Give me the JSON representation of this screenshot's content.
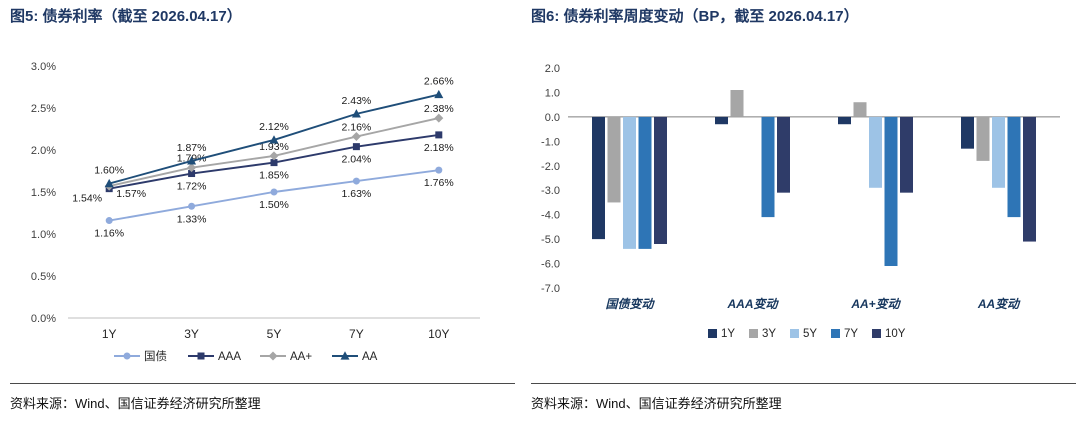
{
  "figure5": {
    "title": "图5: 债券利率（截至 2026.04.17）",
    "source": "资料来源：Wind、国信证券经济研究所整理"
  },
  "figure6": {
    "title": "图6: 债券利率周度变动（BP，截至 2026.04.17）",
    "source": "资料来源：Wind、国信证券经济研究所整理"
  },
  "chart_data": [
    {
      "type": "line",
      "title": "图5: 债券利率（截至 2026.04.17）",
      "x": [
        "1Y",
        "3Y",
        "5Y",
        "7Y",
        "10Y"
      ],
      "series": [
        {
          "name": "国债",
          "values": [
            1.16,
            1.33,
            1.5,
            1.63,
            1.76
          ],
          "color": "#8FAADC",
          "marker": "circle",
          "label_pos": "below"
        },
        {
          "name": "AAA",
          "values": [
            1.54,
            1.72,
            1.85,
            2.04,
            2.18
          ],
          "color": "#2D3A6B",
          "marker": "square",
          "label_pos": "below"
        },
        {
          "name": "AA+",
          "values": [
            1.57,
            1.79,
            1.93,
            2.16,
            2.38
          ],
          "color": "#A6A6A6",
          "marker": "diamond",
          "label_pos": "above"
        },
        {
          "name": "AA",
          "values": [
            1.6,
            1.87,
            2.12,
            2.43,
            2.66
          ],
          "color": "#1F4E79",
          "marker": "triangle",
          "label_pos": "above"
        }
      ],
      "ylim": [
        0,
        3
      ],
      "yticks": [
        0,
        0.5,
        1,
        1.5,
        2,
        2.5,
        3
      ],
      "ytick_labels": [
        "0.0%",
        "0.5%",
        "1.0%",
        "1.5%",
        "2.0%",
        "2.5%",
        "3.0%"
      ],
      "grid": false,
      "legend_position": "bottom",
      "label_overrides": {
        "AAA": {
          "0": [
            -22,
            13
          ]
        },
        "AA+": {
          "0": [
            22,
            11
          ]
        }
      }
    },
    {
      "type": "bar",
      "title": "图6: 债券利率周度变动（BP，截至 2026.04.17）",
      "categories": [
        "国债变动",
        "AAA变动",
        "AA+变动",
        "AA变动"
      ],
      "series": [
        {
          "name": "1Y",
          "color": "#1F3864",
          "values": [
            -5.0,
            -0.3,
            -0.3,
            -1.3
          ]
        },
        {
          "name": "3Y",
          "color": "#A6A6A6",
          "values": [
            -3.5,
            1.1,
            0.6,
            -1.8
          ]
        },
        {
          "name": "5Y",
          "color": "#9DC3E6",
          "values": [
            -5.4,
            0.0,
            -2.9,
            -2.9
          ]
        },
        {
          "name": "7Y",
          "color": "#2E75B6",
          "values": [
            -5.4,
            -4.1,
            -6.1,
            -4.1
          ]
        },
        {
          "name": "10Y",
          "color": "#2F3C69",
          "values": [
            -5.2,
            -3.1,
            -3.1,
            -5.1
          ]
        }
      ],
      "ylim": [
        -7,
        2
      ],
      "yticks": [
        2,
        1,
        0,
        -1,
        -2,
        -3,
        -4,
        -5,
        -6,
        -7
      ],
      "ytick_labels": [
        "2.0",
        "1.0",
        "0.0",
        "-1.0",
        "-2.0",
        "-3.0",
        "-4.0",
        "-5.0",
        "-6.0",
        "-7.0"
      ],
      "grid": false,
      "legend_position": "bottom"
    }
  ]
}
